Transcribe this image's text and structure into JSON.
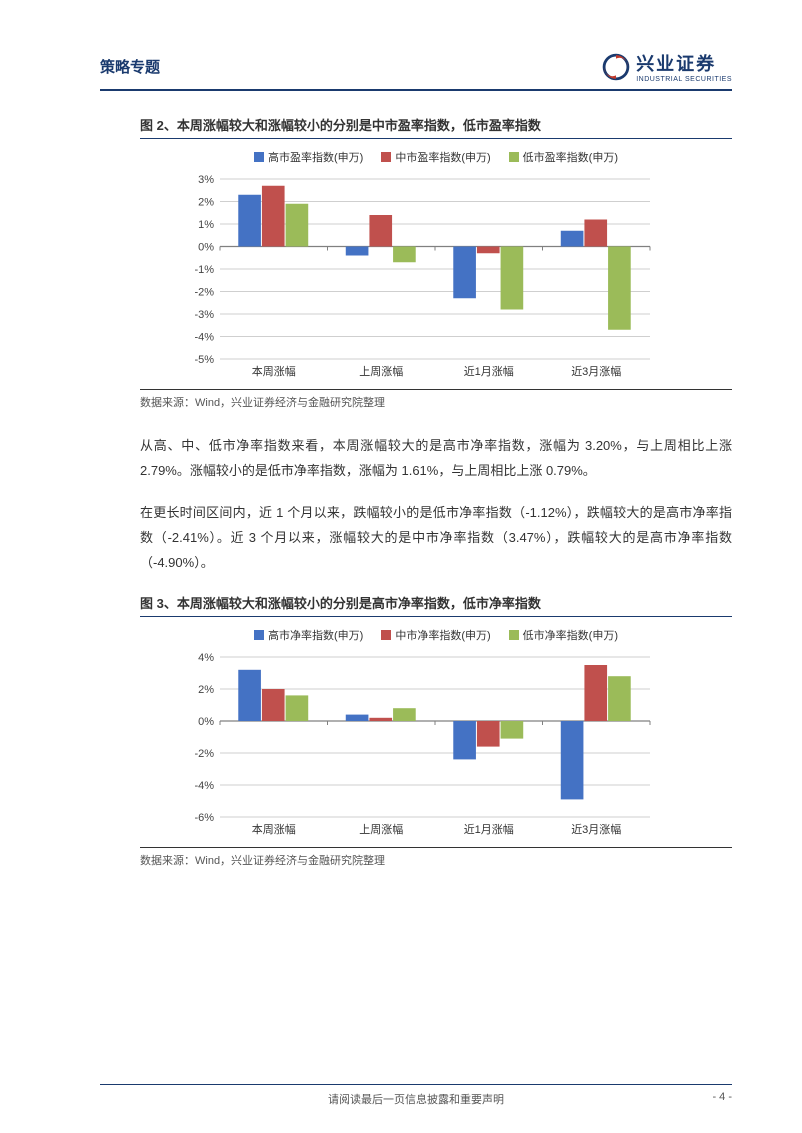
{
  "header": {
    "section": "策略专题",
    "brand_cn": "兴业证券",
    "brand_en": "INDUSTRIAL SECURITIES"
  },
  "figure2": {
    "title": "图 2、本周涨幅较大和涨幅较小的分别是中市盈率指数，低市盈率指数",
    "source": "数据来源：Wind，兴业证券经济与金融研究院整理",
    "type": "bar",
    "categories": [
      "本周涨幅",
      "上周涨幅",
      "近1月涨幅",
      "近3月涨幅"
    ],
    "series": [
      {
        "name": "高市盈率指数(申万)",
        "color": "#4472c4",
        "values": [
          2.3,
          -0.4,
          -2.3,
          0.7
        ]
      },
      {
        "name": "中市盈率指数(申万)",
        "color": "#c0504d",
        "values": [
          2.7,
          1.4,
          -0.3,
          1.2
        ]
      },
      {
        "name": "低市盈率指数(申万)",
        "color": "#9bbb59",
        "values": [
          1.9,
          -0.7,
          -2.8,
          -3.7
        ]
      }
    ],
    "ylim": [
      -5,
      3
    ],
    "ytick_step": 1,
    "label_fontsize": 11,
    "grid_color": "#bfbfbf",
    "axis_color": "#808080",
    "background_color": "#ffffff",
    "bar_width": 0.22
  },
  "para1": "从高、中、低市净率指数来看，本周涨幅较大的是高市净率指数，涨幅为 3.20%，与上周相比上涨 2.79%。涨幅较小的是低市净率指数，涨幅为 1.61%，与上周相比上涨 0.79%。",
  "para2": "在更长时间区间内，近 1 个月以来，跌幅较小的是低市净率指数（-1.12%），跌幅较大的是高市净率指数（-2.41%）。近 3 个月以来，涨幅较大的是中市净率指数（3.47%），跌幅较大的是高市净率指数（-4.90%）。",
  "figure3": {
    "title": "图 3、本周涨幅较大和涨幅较小的分别是高市净率指数，低市净率指数",
    "source": "数据来源：Wind，兴业证券经济与金融研究院整理",
    "type": "bar",
    "categories": [
      "本周涨幅",
      "上周涨幅",
      "近1月涨幅",
      "近3月涨幅"
    ],
    "series": [
      {
        "name": "高市净率指数(申万)",
        "color": "#4472c4",
        "values": [
          3.2,
          0.4,
          -2.4,
          -4.9
        ]
      },
      {
        "name": "中市净率指数(申万)",
        "color": "#c0504d",
        "values": [
          2.0,
          0.2,
          -1.6,
          3.5
        ]
      },
      {
        "name": "低市净率指数(申万)",
        "color": "#9bbb59",
        "values": [
          1.6,
          0.8,
          -1.1,
          2.8
        ]
      }
    ],
    "ylim": [
      -6,
      4
    ],
    "ytick_step": 2,
    "label_fontsize": 11,
    "grid_color": "#bfbfbf",
    "axis_color": "#808080",
    "background_color": "#ffffff",
    "bar_width": 0.22
  },
  "footer": {
    "disclaimer": "请阅读最后一页信息披露和重要声明",
    "page": "- 4 -"
  }
}
